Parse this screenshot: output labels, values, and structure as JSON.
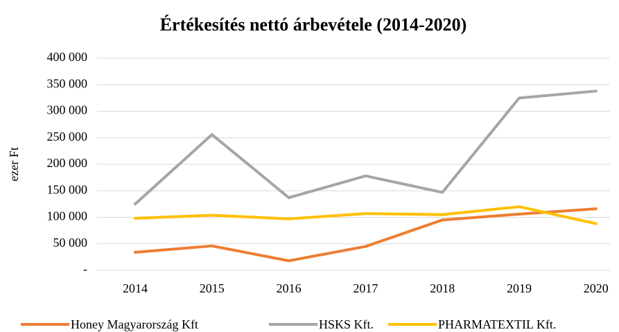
{
  "chart_data": {
    "type": "line",
    "title": "Értékesítés nettó árbevétele (2014-2020)",
    "y_label": "ezer Ft",
    "categories": [
      "2014",
      "2015",
      "2016",
      "2017",
      "2018",
      "2019",
      "2020"
    ],
    "series": [
      {
        "name": "Honey Magyarország Kft",
        "color": "#ed7d31",
        "values": [
          34000,
          46000,
          18000,
          45000,
          95000,
          106000,
          116000
        ]
      },
      {
        "name": "HSKS Kft.",
        "color": "#a5a5a5",
        "values": [
          125000,
          256000,
          137000,
          178000,
          147000,
          325000,
          338000
        ]
      },
      {
        "name": "PHARMATEXTIL Kft.",
        "color": "#ffc000",
        "values": [
          98000,
          104000,
          97000,
          107000,
          105000,
          120000,
          88000
        ]
      }
    ],
    "ylim": [
      0,
      400000
    ],
    "yticks": [
      {
        "value": 0,
        "label": "-"
      },
      {
        "value": 50000,
        "label": "50 000"
      },
      {
        "value": 100000,
        "label": "100 000"
      },
      {
        "value": 150000,
        "label": "150 000"
      },
      {
        "value": 200000,
        "label": "200 000"
      },
      {
        "value": 250000,
        "label": "250 000"
      },
      {
        "value": 300000,
        "label": "300 000"
      },
      {
        "value": 350000,
        "label": "350 000"
      },
      {
        "value": 400000,
        "label": "400 000"
      }
    ],
    "grid": true,
    "legend": "bottom"
  }
}
